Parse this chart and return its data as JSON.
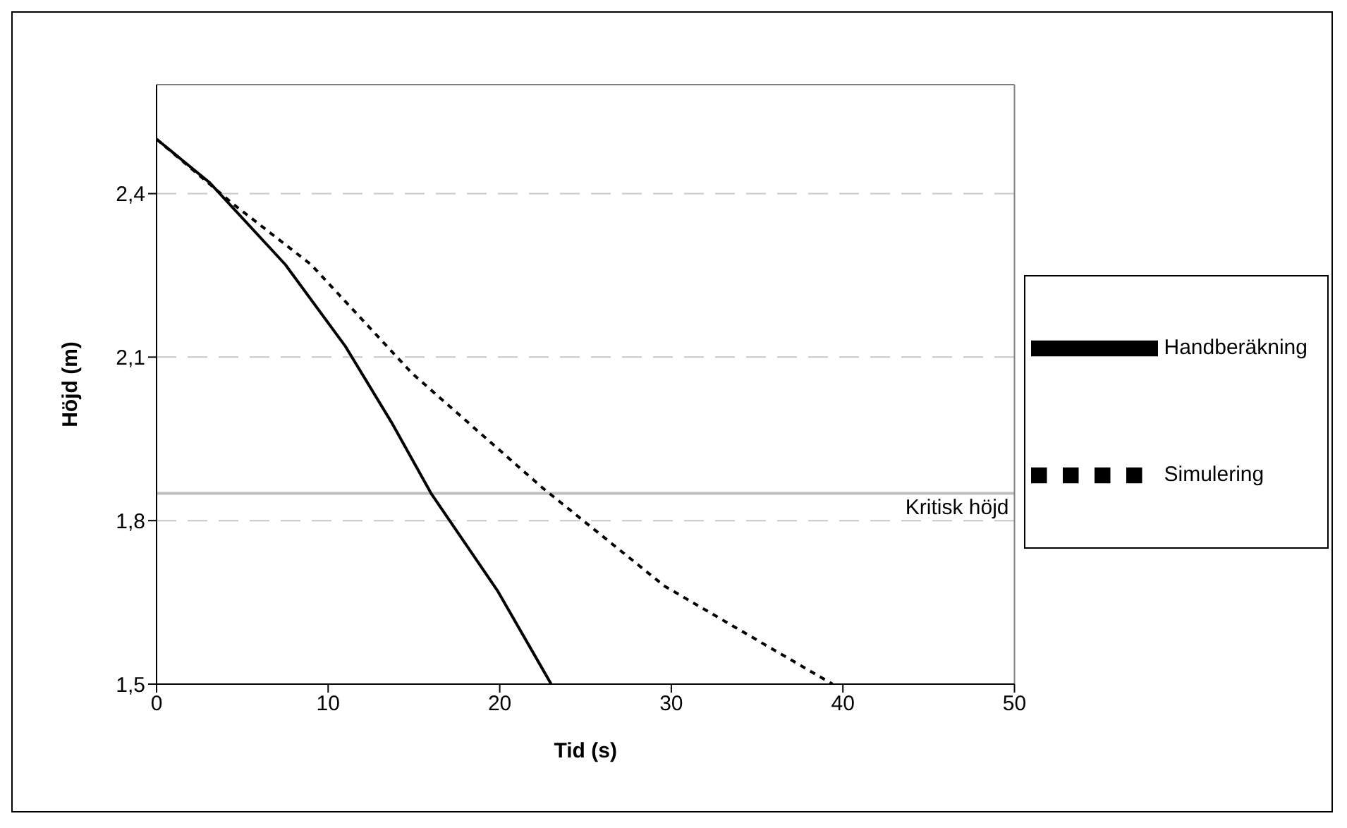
{
  "chart_data": {
    "type": "line",
    "xlabel": "Tid (s)",
    "ylabel": "Höjd (m)",
    "xlim": [
      0,
      50
    ],
    "xticks": [
      0,
      10,
      20,
      30,
      40,
      50
    ],
    "ylim": [
      1.5,
      2.6
    ],
    "yticks": [
      {
        "value": 1.5,
        "label": "1,5"
      },
      {
        "value": 1.8,
        "label": "1,8"
      },
      {
        "value": 2.1,
        "label": "2,1"
      },
      {
        "value": 2.4,
        "label": "2,4"
      }
    ],
    "grid": "y",
    "legend": "right",
    "marker": "none",
    "series": [
      {
        "name": "Handberäkning",
        "color": "#000000",
        "line_style": "solid",
        "x": [
          0,
          3.1,
          7.5,
          11,
          13.7,
          16,
          19.9,
          23
        ],
        "values": [
          2.5,
          2.42,
          2.27,
          2.12,
          1.98,
          1.85,
          1.67,
          1.5
        ]
      },
      {
        "name": "Simulering",
        "color": "#000000",
        "line_style": "dashed",
        "x": [
          0,
          4.5,
          9,
          14.9,
          22.5,
          29.6,
          39.4
        ],
        "values": [
          2.5,
          2.38,
          2.27,
          2.07,
          1.86,
          1.68,
          1.5
        ]
      }
    ],
    "ref_lines": [
      {
        "axis": "y",
        "value": 1.85,
        "label": "Kritisk höjd",
        "color": "#c0c0c0"
      }
    ]
  }
}
